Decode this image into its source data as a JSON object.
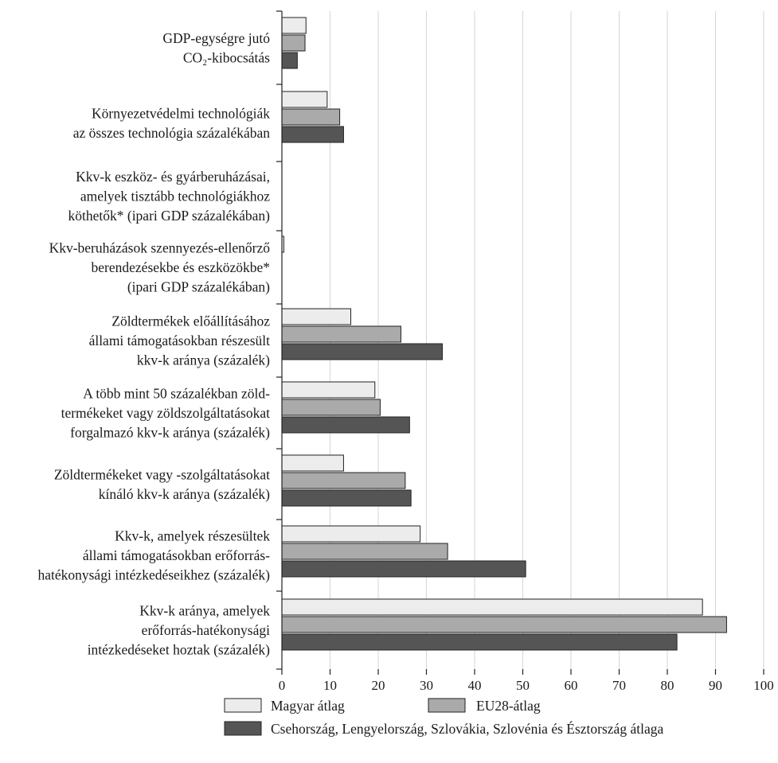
{
  "chart_data": {
    "type": "bar",
    "orientation": "horizontal",
    "categories": [
      [
        "GDP-egységre jutó",
        "CO₂-kibocsátás"
      ],
      [
        "Környezetvédelmi technológiák",
        "az összes technológia százalékában"
      ],
      [
        "Kkv-k eszköz- és gyárberuházásai,",
        "amelyek tisztább technológiákhoz",
        "köthetők* (ipari GDP százalékában)"
      ],
      [
        "Kkv-beruházások szennyezés-ellenőrző",
        "berendezésekbe és eszközökbe*",
        "(ipari GDP százalékában)"
      ],
      [
        "Zöldtermékek előállításához",
        "állami támogatásokban részesült",
        "kkv-k aránya (százalék)"
      ],
      [
        "A több mint 50 százalékban zöld-",
        "termékeket vagy zöldszolgáltatásokat",
        "forgalmazó kkv-k aránya (százalék)"
      ],
      [
        "Zöldtermékeket vagy -szolgáltatásokat",
        "kínáló kkv-k aránya (százalék)"
      ],
      [
        "Kkv-k, amelyek részesültek",
        "állami támogatásokban erőforrás-",
        "hatékonysági intézkedéseikhez (százalék)"
      ],
      [
        "Kkv-k aránya, amelyek",
        "erőforrás-hatékonysági",
        "intézkedéseket hoztak (százalék)"
      ]
    ],
    "series": [
      {
        "name": "Magyar átlag",
        "color": "#ececec",
        "values": [
          5.0,
          9.4,
          null,
          0.4,
          14.3,
          19.3,
          12.8,
          28.7,
          87.3
        ]
      },
      {
        "name": "EU28-átlag",
        "color": "#aaaaaa",
        "values": [
          4.8,
          12.0,
          null,
          null,
          24.7,
          20.4,
          25.6,
          34.4,
          92.3
        ]
      },
      {
        "name": "Csehország, Lengyelország, Szlovákia, Szlovénia és Észtország átlaga",
        "color": "#555555",
        "values": [
          3.2,
          12.8,
          null,
          null,
          33.3,
          26.5,
          26.8,
          50.6,
          82.0
        ]
      }
    ],
    "x_ticks": [
      "0",
      "10",
      "20",
      "30",
      "40",
      "50",
      "60",
      "70",
      "80",
      "90",
      "100"
    ],
    "xlim": [
      0,
      100
    ],
    "grid": "vertical",
    "legend_position": "bottom"
  }
}
